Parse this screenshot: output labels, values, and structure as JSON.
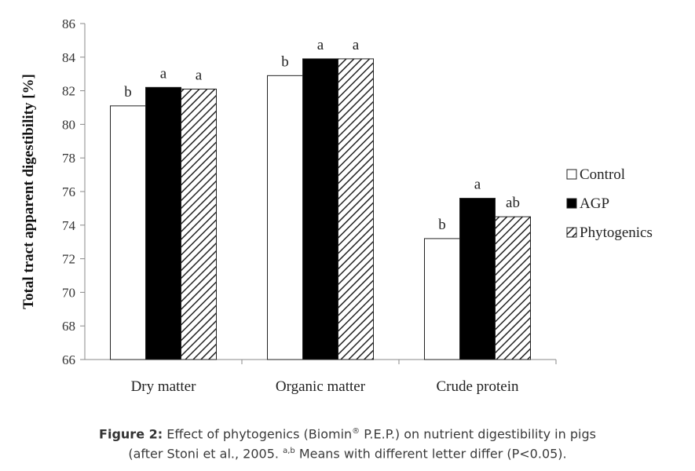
{
  "chart_data": {
    "type": "bar",
    "categories": [
      "Dry matter",
      "Organic matter",
      "Crude protein"
    ],
    "series": [
      {
        "name": "Control",
        "values": [
          81.1,
          82.9,
          73.2
        ],
        "labels": [
          "b",
          "b",
          "b"
        ],
        "fill": "#ffffff",
        "pattern": "none"
      },
      {
        "name": "AGP",
        "values": [
          82.2,
          83.9,
          75.6
        ],
        "labels": [
          "a",
          "a",
          "a"
        ],
        "fill": "#000000",
        "pattern": "none"
      },
      {
        "name": "Phytogenics",
        "values": [
          82.1,
          83.9,
          74.5
        ],
        "labels": [
          "a",
          "a",
          "ab"
        ],
        "fill": "#ffffff",
        "pattern": "diagonal-hatch"
      }
    ],
    "ylabel": "Total tract apparent digestibility [%]",
    "xlabel": "",
    "ylim": [
      66,
      86
    ],
    "yticks": [
      66,
      68,
      70,
      72,
      74,
      76,
      78,
      80,
      82,
      84,
      86
    ],
    "grid": false,
    "legend_position": "right"
  },
  "caption": {
    "bold": "Figure 2:",
    "line1": "Effect of phytogenics (Biomin",
    "reg": "®",
    "line1b": "P.E.P.) on nutrient digestibility in pigs",
    "line2a": "(after Stoni et al., 2005.",
    "sup": "a,b",
    "line2b": "Means with different letter differ (P<0.05)."
  }
}
